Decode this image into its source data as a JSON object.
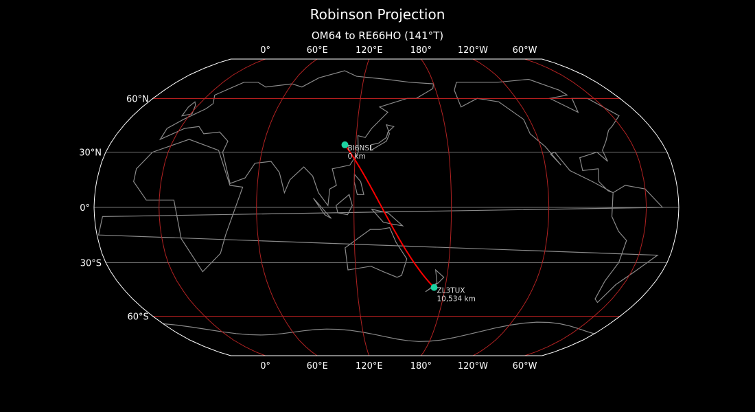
{
  "title": "Robinson Projection",
  "subtitle": "OM64 to RE66HO (141°T)",
  "map": {
    "projection": "Robinson",
    "central_longitude": 140,
    "meridians": [
      0,
      60,
      120,
      180,
      -120,
      -60
    ],
    "meridian_labels": [
      "0°",
      "60°E",
      "120°E",
      "180°",
      "120°W",
      "60°W"
    ],
    "parallels": [
      60,
      30,
      0,
      -30,
      -60
    ],
    "parallel_labels": [
      "60°N",
      "30°N",
      "0°",
      "30°S",
      "60°S"
    ],
    "colors": {
      "background": "#000000",
      "outline": "#ffffff",
      "coastline": "#8a8a8a",
      "meridian": "#b22222",
      "parallel_major": "#cc2222",
      "parallel_minor": "#777777",
      "path": "#ff0000",
      "marker": "#1dd3a2"
    }
  },
  "path": {
    "from": {
      "call": "BI6NSL",
      "distance": "0 km",
      "lat": 34,
      "lon": 113
    },
    "to": {
      "call": "ZL3TUX",
      "distance": "10,534 km",
      "lat": -43.6,
      "lon": 172.5
    }
  }
}
